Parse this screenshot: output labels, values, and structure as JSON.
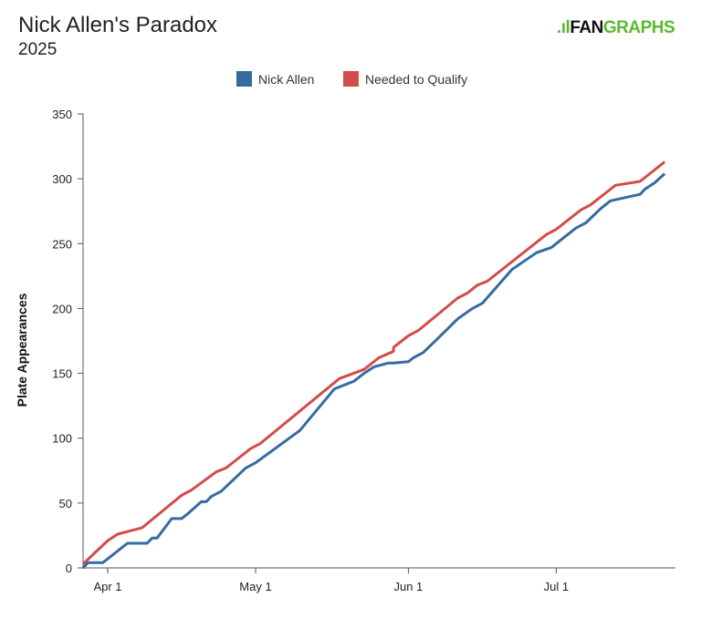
{
  "logo_text": "FANGRAPHS",
  "chart_data": {
    "type": "line",
    "title": "Nick Allen's Paradox",
    "subtitle": "2025",
    "ylabel": "Plate Appearances",
    "xlabel": "",
    "ylim": [
      0,
      350
    ],
    "yticks": [
      0,
      50,
      100,
      150,
      200,
      250,
      300,
      350
    ],
    "xlim": [
      "2025-03-27",
      "2025-07-24"
    ],
    "xticks": [
      {
        "date": "2025-04-01",
        "label": "Apr 1"
      },
      {
        "date": "2025-05-01",
        "label": "May 1"
      },
      {
        "date": "2025-06-01",
        "label": "Jun 1"
      },
      {
        "date": "2025-07-01",
        "label": "Jul 1"
      }
    ],
    "grid": false,
    "legend": "top-center",
    "series": [
      {
        "name": "Nick Allen",
        "color": "#366b9f",
        "points": [
          [
            "2025-03-27",
            0
          ],
          [
            "2025-03-28",
            4
          ],
          [
            "2025-03-31",
            4
          ],
          [
            "2025-04-02",
            10
          ],
          [
            "2025-04-05",
            19
          ],
          [
            "2025-04-09",
            19
          ],
          [
            "2025-04-10",
            23
          ],
          [
            "2025-04-11",
            23
          ],
          [
            "2025-04-14",
            38
          ],
          [
            "2025-04-16",
            38
          ],
          [
            "2025-04-17",
            41
          ],
          [
            "2025-04-20",
            51
          ],
          [
            "2025-04-21",
            51
          ],
          [
            "2025-04-22",
            55
          ],
          [
            "2025-04-24",
            59
          ],
          [
            "2025-04-29",
            77
          ],
          [
            "2025-05-01",
            81
          ],
          [
            "2025-05-10",
            106
          ],
          [
            "2025-05-17",
            138
          ],
          [
            "2025-05-21",
            144
          ],
          [
            "2025-05-23",
            150
          ],
          [
            "2025-05-25",
            155
          ],
          [
            "2025-05-28",
            158
          ],
          [
            "2025-05-29",
            158
          ],
          [
            "2025-06-01",
            159
          ],
          [
            "2025-06-02",
            162
          ],
          [
            "2025-06-04",
            166
          ],
          [
            "2025-06-07",
            177
          ],
          [
            "2025-06-11",
            192
          ],
          [
            "2025-06-14",
            200
          ],
          [
            "2025-06-16",
            204
          ],
          [
            "2025-06-22",
            230
          ],
          [
            "2025-06-27",
            243
          ],
          [
            "2025-06-30",
            247
          ],
          [
            "2025-07-03",
            256
          ],
          [
            "2025-07-05",
            262
          ],
          [
            "2025-07-07",
            266
          ],
          [
            "2025-07-10",
            277
          ],
          [
            "2025-07-12",
            283
          ],
          [
            "2025-07-18",
            288
          ],
          [
            "2025-07-19",
            292
          ],
          [
            "2025-07-21",
            297
          ],
          [
            "2025-07-23",
            304
          ]
        ]
      },
      {
        "name": "Needed to Qualify",
        "color": "#d24c4a",
        "points": [
          [
            "2025-03-27",
            3
          ],
          [
            "2025-04-01",
            21
          ],
          [
            "2025-04-03",
            26
          ],
          [
            "2025-04-05",
            28
          ],
          [
            "2025-04-08",
            31
          ],
          [
            "2025-04-16",
            56
          ],
          [
            "2025-04-18",
            60
          ],
          [
            "2025-04-23",
            74
          ],
          [
            "2025-04-25",
            77
          ],
          [
            "2025-04-30",
            92
          ],
          [
            "2025-05-02",
            96
          ],
          [
            "2025-05-18",
            146
          ],
          [
            "2025-05-23",
            153
          ],
          [
            "2025-05-26",
            162
          ],
          [
            "2025-05-29",
            167
          ],
          [
            "2025-05-29",
            170
          ],
          [
            "2025-06-01",
            179
          ],
          [
            "2025-06-03",
            183
          ],
          [
            "2025-06-11",
            208
          ],
          [
            "2025-06-13",
            212
          ],
          [
            "2025-06-15",
            218
          ],
          [
            "2025-06-17",
            221
          ],
          [
            "2025-06-29",
            257
          ],
          [
            "2025-07-01",
            261
          ],
          [
            "2025-07-06",
            276
          ],
          [
            "2025-07-08",
            280
          ],
          [
            "2025-07-13",
            295
          ],
          [
            "2025-07-18",
            298
          ],
          [
            "2025-07-23",
            313
          ]
        ]
      }
    ]
  }
}
